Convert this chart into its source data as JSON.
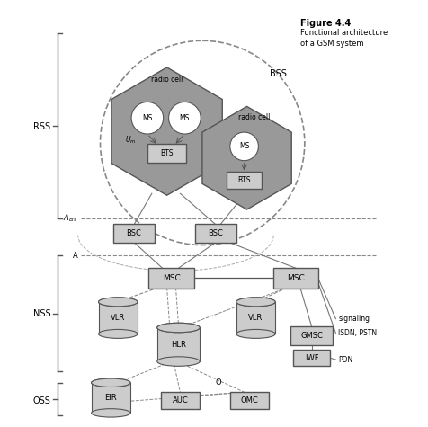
{
  "title": "Figure 4.4",
  "subtitle1": "Functional architecture",
  "subtitle2": "of a GSM system",
  "bg_color": "#ffffff",
  "hex_color": "#999999",
  "box_color": "#cccccc",
  "line_color": "#555555",
  "dashed_color": "#888888"
}
